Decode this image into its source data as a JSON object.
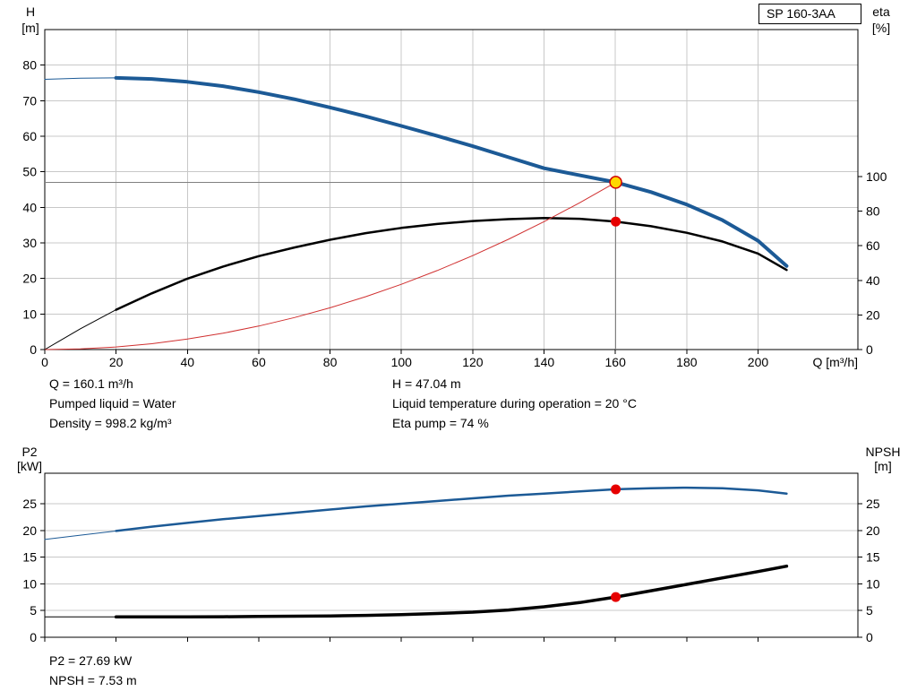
{
  "pump_label": "SP 160-3AA",
  "colors": {
    "curve_blue": "#1c5a96",
    "curve_black": "#000000",
    "system_curve_red": "#d03030",
    "marker_red": "#e60000",
    "marker_yellow_fill": "#ffd800",
    "marker_yellow_stroke": "#d00000",
    "grid": "#c8c8c8",
    "axis": "#000000",
    "crosshair": "#808080"
  },
  "info_top": {
    "q": "Q = 160.1 m³/h",
    "pumped_liquid": "Pumped liquid = Water",
    "density": "Density = 998.2 kg/m³",
    "h": "H = 47.04 m",
    "temperature": "Liquid temperature during operation = 20 °C",
    "eta_pump": "Eta pump = 74 %"
  },
  "info_bottom": {
    "p2": "P2 = 27.69 kW",
    "npsh": "NPSH = 7.53 m"
  },
  "chart_data": [
    {
      "type": "line",
      "title": "SP 160-3AA",
      "x_axis": {
        "label": "Q [m³/h]",
        "min": 0,
        "max": 228,
        "ticks": [
          0,
          20,
          40,
          60,
          80,
          100,
          120,
          140,
          160,
          180,
          200
        ],
        "show_tick_labels": true
      },
      "y_left": {
        "label": "H",
        "unit": "[m]",
        "min": 0,
        "max": 90,
        "ticks": [
          0,
          10,
          20,
          30,
          40,
          50,
          60,
          70,
          80
        ]
      },
      "y_right": {
        "label": "eta",
        "unit": "[%]",
        "min": 0,
        "max": 185,
        "ticks": [
          0,
          20,
          40,
          60,
          80,
          100
        ]
      },
      "grid": {
        "x": true,
        "y": true
      },
      "series": [
        {
          "name": "pump-head-curve",
          "axis": "left",
          "color_key": "curve_blue",
          "width": 4,
          "thin_width": 1,
          "split": 15,
          "x": [
            0,
            10,
            20,
            30,
            40,
            50,
            60,
            70,
            80,
            90,
            100,
            110,
            120,
            130,
            140,
            150,
            160.1,
            170,
            180,
            190,
            200,
            208
          ],
          "y": [
            76.0,
            76.3,
            76.4,
            76.1,
            75.3,
            74.1,
            72.4,
            70.4,
            68.1,
            65.6,
            62.9,
            60.1,
            57.2,
            54.1,
            51.0,
            49.0,
            47.04,
            44.3,
            40.8,
            36.4,
            30.6,
            23.5
          ]
        },
        {
          "name": "efficiency-curve",
          "axis": "right",
          "color_key": "curve_black",
          "width": 2.5,
          "thin_width": 1,
          "split": 15,
          "x": [
            0,
            10,
            20,
            30,
            40,
            50,
            60,
            70,
            80,
            90,
            100,
            110,
            120,
            130,
            140,
            150,
            160.1,
            170,
            180,
            190,
            200,
            208
          ],
          "y": [
            0,
            12,
            23,
            32.5,
            41,
            48,
            54,
            59,
            63.5,
            67.3,
            70.3,
            72.6,
            74.3,
            75.4,
            76.0,
            75.6,
            74.0,
            71.3,
            67.5,
            62.5,
            55.5,
            46.0
          ]
        },
        {
          "name": "system-curve",
          "axis": "left",
          "color_key": "system_curve_red",
          "width": 1,
          "x": [
            0,
            10,
            20,
            30,
            40,
            50,
            60,
            70,
            80,
            90,
            100,
            110,
            120,
            130,
            140,
            150,
            160.1
          ],
          "y": [
            0,
            0.18,
            0.73,
            1.65,
            2.94,
            4.59,
            6.61,
            8.99,
            11.75,
            14.87,
            18.36,
            22.21,
            26.43,
            31.02,
            35.98,
            41.3,
            47.04
          ]
        }
      ],
      "crosshair": {
        "q": 160.1,
        "h": 47.04
      },
      "markers": [
        {
          "name": "duty-point-marker",
          "axis": "left",
          "q": 160.1,
          "v": 47.04,
          "r": 6.5,
          "fill_key": "marker_yellow_fill",
          "stroke_key": "marker_yellow_stroke",
          "stroke_width": 1.5
        },
        {
          "name": "eta-point-marker",
          "axis": "right",
          "q": 160.1,
          "v": 74,
          "r": 5,
          "fill_key": "marker_red",
          "stroke_key": "marker_red",
          "stroke_width": 1
        }
      ]
    },
    {
      "type": "line",
      "title": "P2 / NPSH",
      "x_axis": {
        "label": "",
        "min": 0,
        "max": 228,
        "ticks": [
          0,
          20,
          40,
          60,
          80,
          100,
          120,
          140,
          160,
          180,
          200
        ],
        "show_tick_labels": false
      },
      "y_left": {
        "label": "P2",
        "unit": "[kW]",
        "min": 0,
        "max": 30.7,
        "ticks": [
          0,
          5,
          10,
          15,
          20,
          25
        ]
      },
      "y_right": {
        "label": "NPSH",
        "unit": "[m]",
        "min": 0,
        "max": 30.7,
        "ticks": [
          0,
          5,
          10,
          15,
          20,
          25
        ]
      },
      "grid": {
        "x": false,
        "y": true
      },
      "series": [
        {
          "name": "p2-curve",
          "axis": "left",
          "color_key": "curve_blue",
          "width": 2.5,
          "thin_width": 1,
          "split": 15,
          "x": [
            0,
            10,
            20,
            30,
            40,
            50,
            60,
            70,
            80,
            90,
            100,
            110,
            120,
            130,
            140,
            150,
            160.1,
            170,
            180,
            190,
            200,
            208
          ],
          "y": [
            18.3,
            19.1,
            19.9,
            20.7,
            21.4,
            22.1,
            22.7,
            23.3,
            23.9,
            24.5,
            25.0,
            25.5,
            26.0,
            26.5,
            26.9,
            27.3,
            27.69,
            27.9,
            28.0,
            27.9,
            27.5,
            26.9
          ]
        },
        {
          "name": "npsh-curve",
          "axis": "right",
          "color_key": "curve_black",
          "width": 3.5,
          "thin_width": 1,
          "split": 15,
          "x": [
            0,
            10,
            20,
            30,
            40,
            50,
            60,
            70,
            80,
            90,
            100,
            110,
            120,
            130,
            140,
            150,
            160.1,
            170,
            180,
            190,
            200,
            208
          ],
          "y": [
            3.8,
            3.8,
            3.8,
            3.8,
            3.8,
            3.85,
            3.9,
            3.95,
            4.0,
            4.1,
            4.25,
            4.45,
            4.7,
            5.1,
            5.7,
            6.5,
            7.53,
            8.7,
            9.9,
            11.1,
            12.3,
            13.3
          ]
        }
      ],
      "markers": [
        {
          "name": "p2-point-marker",
          "axis": "left",
          "q": 160.1,
          "v": 27.69,
          "r": 5,
          "fill_key": "marker_red",
          "stroke_key": "marker_red",
          "stroke_width": 1
        },
        {
          "name": "npsh-point-marker",
          "axis": "right",
          "q": 160.1,
          "v": 7.53,
          "r": 5,
          "fill_key": "marker_red",
          "stroke_key": "marker_red",
          "stroke_width": 1
        }
      ]
    }
  ]
}
